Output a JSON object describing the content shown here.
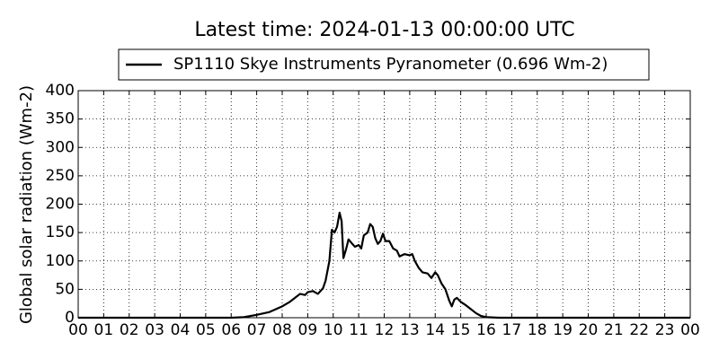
{
  "chart_data": {
    "type": "line",
    "title": "Latest time: 2024-01-13 00:00:00 UTC",
    "ylabel": "Global solar radiation (Wm-2)",
    "x": [
      0,
      6.0,
      6.5,
      7.0,
      7.5,
      8.0,
      8.3,
      8.5,
      8.7,
      8.9,
      9.0,
      9.2,
      9.4,
      9.6,
      9.7,
      9.85,
      9.95,
      10.05,
      10.15,
      10.25,
      10.33,
      10.4,
      10.5,
      10.6,
      10.75,
      10.85,
      11.0,
      11.1,
      11.2,
      11.35,
      11.45,
      11.55,
      11.65,
      11.75,
      11.85,
      11.95,
      12.05,
      12.2,
      12.35,
      12.5,
      12.6,
      12.8,
      13.0,
      13.1,
      13.2,
      13.35,
      13.5,
      13.7,
      13.85,
      14.0,
      14.1,
      14.25,
      14.4,
      14.55,
      14.65,
      14.75,
      14.85,
      15.0,
      15.2,
      15.4,
      15.6,
      15.8,
      16.0,
      16.5,
      24
    ],
    "series": [
      {
        "name": "SP1110 Skye Instruments Pyranometer (0.696 Wm-2)",
        "color": "#000000",
        "values": [
          0,
          0,
          1,
          5,
          10,
          20,
          28,
          35,
          42,
          40,
          45,
          47,
          42,
          52,
          65,
          100,
          155,
          150,
          160,
          185,
          170,
          105,
          120,
          138,
          130,
          125,
          128,
          122,
          145,
          150,
          165,
          160,
          140,
          130,
          135,
          148,
          135,
          135,
          122,
          118,
          108,
          112,
          110,
          112,
          100,
          88,
          80,
          78,
          70,
          80,
          75,
          60,
          50,
          30,
          20,
          32,
          35,
          28,
          22,
          15,
          8,
          3,
          1,
          0,
          0
        ]
      }
    ],
    "xlim": [
      0,
      24
    ],
    "xticks": [
      {
        "value": 0,
        "label": "00"
      },
      {
        "value": 1,
        "label": "01"
      },
      {
        "value": 2,
        "label": "02"
      },
      {
        "value": 3,
        "label": "03"
      },
      {
        "value": 4,
        "label": "04"
      },
      {
        "value": 5,
        "label": "05"
      },
      {
        "value": 6,
        "label": "06"
      },
      {
        "value": 7,
        "label": "07"
      },
      {
        "value": 8,
        "label": "08"
      },
      {
        "value": 9,
        "label": "09"
      },
      {
        "value": 10,
        "label": "10"
      },
      {
        "value": 11,
        "label": "11"
      },
      {
        "value": 12,
        "label": "12"
      },
      {
        "value": 13,
        "label": "13"
      },
      {
        "value": 14,
        "label": "14"
      },
      {
        "value": 15,
        "label": "15"
      },
      {
        "value": 16,
        "label": "16"
      },
      {
        "value": 17,
        "label": "17"
      },
      {
        "value": 18,
        "label": "18"
      },
      {
        "value": 19,
        "label": "19"
      },
      {
        "value": 20,
        "label": "20"
      },
      {
        "value": 21,
        "label": "21"
      },
      {
        "value": 22,
        "label": "22"
      },
      {
        "value": 23,
        "label": "23"
      },
      {
        "value": 24,
        "label": "00"
      }
    ],
    "ylim": [
      0,
      400
    ],
    "yticks": [
      0,
      50,
      100,
      150,
      200,
      250,
      300,
      350,
      400
    ],
    "grid": true
  }
}
